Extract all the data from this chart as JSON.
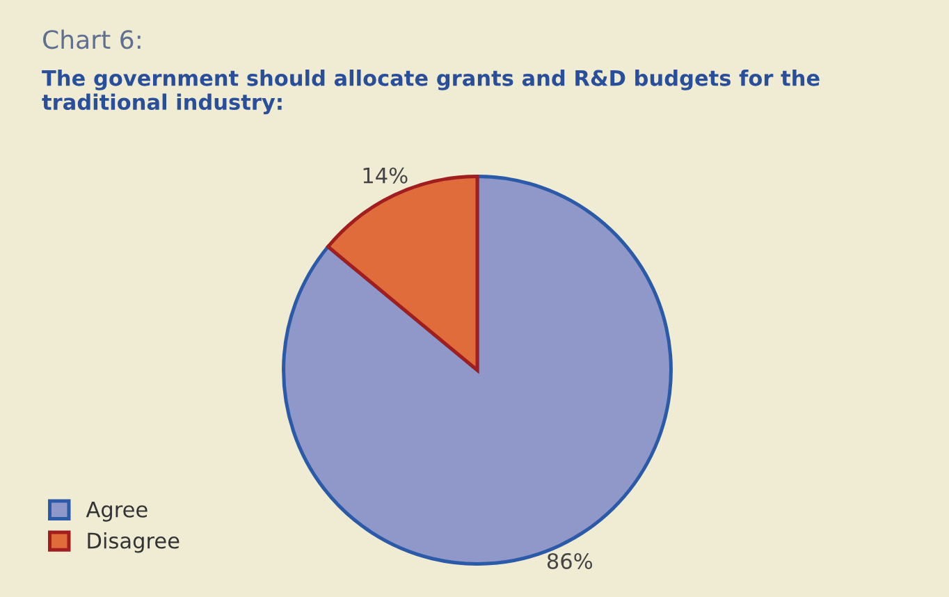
{
  "chart_data": {
    "type": "pie",
    "title": "Chart 6:",
    "subtitle": "The government should allocate grants and R&D budgets for the traditional industry:",
    "categories": [
      "Agree",
      "Disagree"
    ],
    "values": [
      86,
      14
    ],
    "colors": [
      "#8f98c9",
      "#e06b3b"
    ],
    "value_labels": [
      "86%",
      "14%"
    ],
    "legend": "bottom left"
  }
}
